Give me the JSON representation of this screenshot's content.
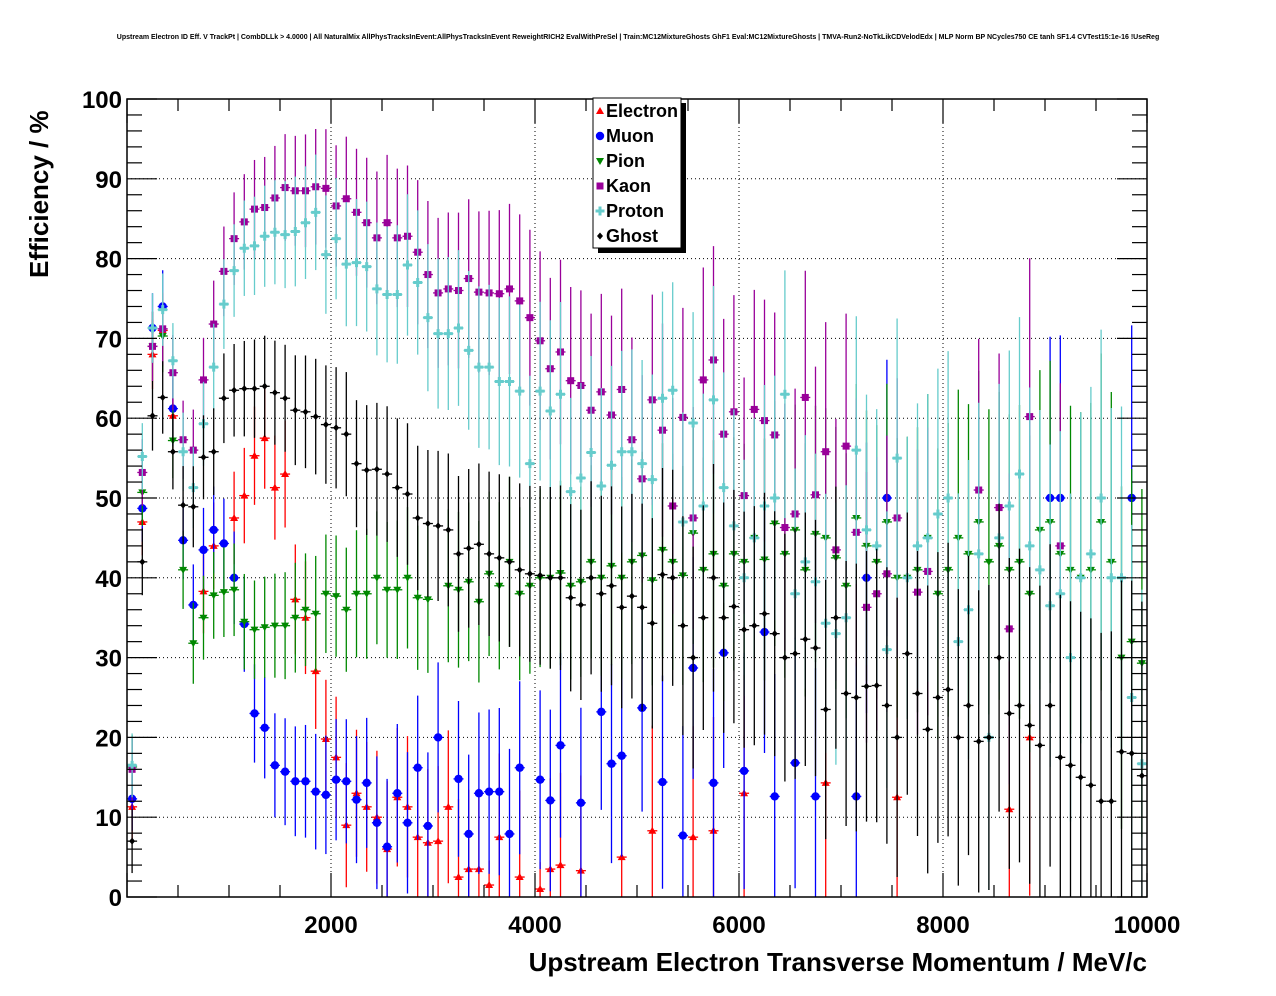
{
  "chart_data": {
    "type": "scatter",
    "title": "Upstream Electron ID Eff. V TrackPt | CombDLLk > 4.0000 | All NaturalMix AllPhysTracksInEvent:AllPhysTracksInEvent ReweightRICH2 EvalWithPreSel | Train:MC12MixtureGhosts GhF1 Eval:MC12MixtureGhosts | TMVA-Run2-NoTkLikCDVelodEdx | MLP Norm BP NCycles750 CE tanh SF1.4 CVTest15:1e-16 !UseReg",
    "xlabel": "Upstream Electron Transverse Momentum / MeV/c",
    "ylabel": "Efficiency / %",
    "xlim": [
      0,
      10000
    ],
    "ylim": [
      0,
      100
    ],
    "x_ticks": [
      "2000",
      "4000",
      "6000",
      "8000",
      "10000"
    ],
    "y_ticks": [
      "0",
      "10",
      "20",
      "30",
      "40",
      "50",
      "60",
      "70",
      "80",
      "90",
      "100"
    ],
    "grid": true,
    "legend_position": "top-center",
    "bin_width": 100,
    "x_start": 50,
    "series": [
      {
        "name": "Electron",
        "color": "#ff0000",
        "marker": "triangle-up",
        "values": [
          11.3,
          47,
          68,
          71,
          60.3,
          null,
          null,
          38.3,
          44,
          null,
          47.5,
          50.3,
          55.3,
          57.5,
          51.3,
          53,
          37.3,
          35,
          28.3,
          19.8,
          17.5,
          9,
          13,
          11.3,
          10,
          6,
          12.5,
          11.3,
          7.5,
          6.8,
          7,
          11.3,
          2.5,
          3.5,
          3.5,
          1.5,
          7.5,
          null,
          2.5,
          null,
          1,
          3.5,
          4,
          null,
          3.3,
          null,
          null,
          null,
          5,
          null,
          null,
          8.3,
          null,
          null,
          null,
          7.5,
          null,
          8.3,
          null,
          null,
          13,
          null,
          null,
          null,
          null,
          null,
          null,
          null,
          14.3,
          null,
          null,
          null,
          null,
          null,
          null,
          12.5,
          null,
          null,
          null,
          null,
          null,
          null,
          null,
          null,
          null,
          null,
          11,
          null,
          20,
          null,
          null,
          null,
          null,
          null,
          null,
          null,
          null,
          null,
          null,
          null
        ]
      },
      {
        "name": "Muon",
        "color": "#0000ff",
        "marker": "circle",
        "values": [
          12.3,
          48.7,
          71.3,
          74,
          61.2,
          44.7,
          36.6,
          43.5,
          46,
          44.3,
          40,
          34.2,
          23,
          21.2,
          16.5,
          15.7,
          14.5,
          14.5,
          13.2,
          12.8,
          14.7,
          14.5,
          12.2,
          14.3,
          9.3,
          6.3,
          13,
          9.3,
          16.2,
          8.9,
          20,
          null,
          14.8,
          7.9,
          13,
          13.2,
          13.2,
          7.9,
          16.2,
          null,
          14.7,
          12.1,
          19,
          null,
          11.8,
          null,
          23.2,
          16.7,
          17.7,
          null,
          23.7,
          null,
          14.4,
          null,
          7.7,
          28.7,
          null,
          14.3,
          30.6,
          null,
          15.8,
          null,
          33.2,
          12.6,
          null,
          16.8,
          null,
          12.6,
          null,
          null,
          null,
          12.6,
          40,
          null,
          50,
          null,
          null,
          null,
          null,
          null,
          null,
          null,
          null,
          null,
          null,
          null,
          null,
          null,
          null,
          null,
          50,
          50,
          null,
          null,
          null,
          null,
          null,
          null,
          50,
          null
        ]
      },
      {
        "name": "Pion",
        "color": "#008800",
        "marker": "triangle-down",
        "values": [
          16.3,
          50.7,
          69,
          70.3,
          57.2,
          41,
          31.8,
          35,
          37.8,
          38.2,
          38.5,
          34.5,
          33.5,
          33.8,
          34,
          34,
          35,
          36,
          35.5,
          38,
          37.7,
          36,
          38,
          38,
          40,
          38.5,
          38.5,
          40,
          37.5,
          37.3,
          null,
          39,
          38.5,
          39.5,
          37,
          40.5,
          39,
          42,
          38,
          39,
          40,
          40,
          40.6,
          39,
          39.5,
          42,
          40,
          41.5,
          40,
          42,
          42.8,
          39.7,
          43.5,
          42,
          40.3,
          45.6,
          41,
          43,
          39,
          43,
          42,
          45,
          42.3,
          46.8,
          43,
          46,
          41,
          45.5,
          45,
          42.5,
          39,
          47.5,
          44,
          42,
          47,
          40,
          40,
          41,
          45,
          38,
          41,
          45,
          43,
          47,
          42,
          44,
          41,
          42,
          38,
          46,
          47,
          43,
          41,
          40,
          41,
          47,
          42,
          30,
          32,
          29.3
        ]
      },
      {
        "name": "Kaon",
        "color": "#990099",
        "marker": "square",
        "values": [
          16,
          53.2,
          69,
          71.2,
          65.7,
          57.3,
          56,
          64.8,
          71.8,
          78.4,
          82.5,
          84.6,
          86.2,
          86.4,
          87.6,
          88.9,
          88.5,
          88.5,
          89,
          88.8,
          86.6,
          87.5,
          85.8,
          84.5,
          82.6,
          84.5,
          82.6,
          82.8,
          80.8,
          78,
          75.7,
          76.2,
          76,
          77.5,
          75.8,
          75.7,
          75.6,
          76.2,
          74.7,
          72.6,
          69.7,
          66.2,
          68.3,
          64.7,
          64.1,
          61,
          63.3,
          60.4,
          63.6,
          57.3,
          52.4,
          62.3,
          58.5,
          49,
          60.1,
          47.5,
          64.8,
          67.3,
          58,
          60.8,
          50.3,
          61.1,
          59.7,
          57.9,
          46.3,
          48,
          62.6,
          50.4,
          55.8,
          43.5,
          56.5,
          45.7,
          36.3,
          38,
          40.5,
          47.5,
          null,
          38.2,
          40.8,
          null,
          null,
          null,
          null,
          51,
          null,
          48.8,
          33.6,
          null,
          60.2,
          null,
          null,
          44,
          null,
          null,
          null,
          null,
          null,
          null,
          null,
          null
        ]
      },
      {
        "name": "Proton",
        "color": "#66cccc",
        "marker": "cross",
        "values": [
          16.5,
          55.2,
          71.3,
          73.6,
          67.2,
          55.8,
          51.3,
          59.3,
          66.4,
          74.3,
          78.5,
          81.3,
          81.6,
          82.8,
          83.3,
          83,
          83.4,
          84.5,
          85.8,
          80.5,
          82.5,
          79.3,
          79.5,
          79,
          76.2,
          75.5,
          75.5,
          79.2,
          77,
          72.6,
          70.6,
          70.6,
          71.3,
          68.5,
          66.4,
          66.4,
          64.6,
          64.6,
          63.4,
          54.3,
          63.4,
          60.9,
          63,
          50.8,
          52.5,
          55.7,
          51.5,
          54.1,
          55.8,
          55.8,
          54.3,
          52.3,
          62.5,
          63.5,
          47,
          59.4,
          49,
          62.3,
          51.3,
          46.5,
          40,
          45,
          49,
          50,
          63,
          38,
          42,
          39.5,
          34.3,
          33,
          35,
          56,
          46,
          44,
          31,
          55,
          40,
          44,
          45,
          48,
          50,
          32,
          36,
          43,
          20,
          45,
          49,
          53,
          44,
          41,
          36.5,
          38,
          30,
          40,
          43,
          50,
          40,
          40,
          25,
          16.7
        ]
      },
      {
        "name": "Ghost",
        "color": "#000000",
        "marker": "diamond",
        "values": [
          7,
          42,
          60.3,
          62.6,
          55.8,
          49.1,
          48.9,
          55.1,
          55.8,
          62.5,
          63.5,
          63.7,
          63.7,
          64,
          63.2,
          62.5,
          61,
          60.8,
          60.2,
          59.2,
          58.8,
          58,
          54.3,
          53.5,
          53.6,
          53,
          51.3,
          50.5,
          47.5,
          46.8,
          46.5,
          46,
          43,
          43.7,
          44.2,
          43,
          42.5,
          42,
          41,
          40.5,
          40.3,
          40,
          40,
          37.5,
          36.6,
          40,
          38,
          39,
          36.3,
          37.7,
          36.3,
          34.3,
          40.4,
          40,
          34,
          30,
          35,
          40,
          35,
          36.4,
          33.5,
          34,
          35.5,
          33,
          30,
          30.5,
          32.3,
          31.2,
          23.5,
          35,
          25.5,
          25,
          26.4,
          26.5,
          24,
          20,
          30.5,
          25.5,
          21,
          25,
          26,
          20,
          24,
          19.5,
          20,
          30,
          23,
          24,
          21.5,
          19,
          24,
          17.5,
          16.5,
          15,
          14,
          12,
          12,
          18.2,
          18,
          15.2
        ]
      }
    ]
  },
  "legend": {
    "entries": [
      "Electron",
      "Muon",
      "Pion",
      "Kaon",
      "Proton",
      "Ghost"
    ]
  }
}
